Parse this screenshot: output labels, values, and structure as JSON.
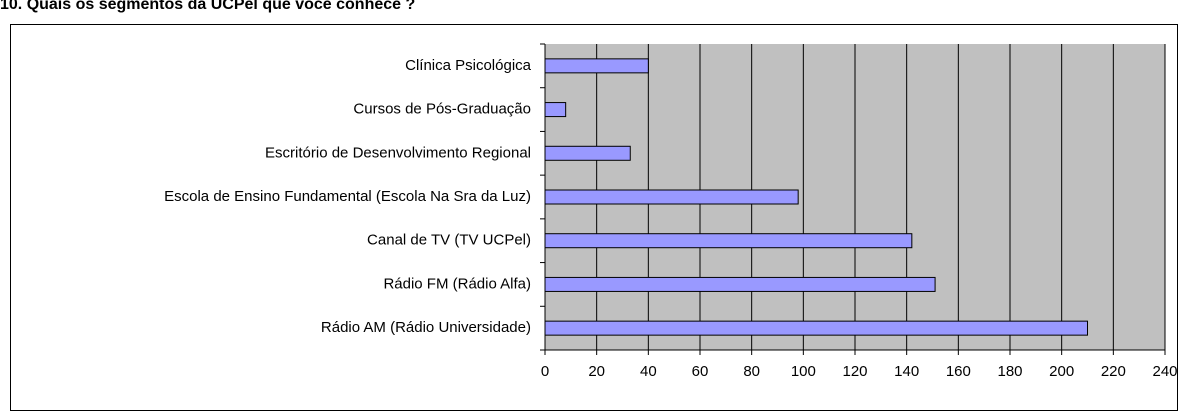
{
  "chart_data": {
    "type": "bar",
    "orientation": "horizontal",
    "title": "10. Quais os segmentos da UCPel que você conhece ?",
    "categories": [
      "Clínica Psicológica",
      "Cursos de Pós-Graduação",
      "Escritório de Desenvolvimento Regional",
      "Escola de Ensino Fundamental (Escola Na Sra da Luz)",
      "Canal de TV (TV UCPel)",
      "Rádio FM (Rádio Alfa)",
      "Rádio AM (Rádio Universidade)"
    ],
    "values": [
      40,
      8,
      33,
      98,
      142,
      151,
      210
    ],
    "color": "#9999ff",
    "xlim": [
      0,
      240
    ],
    "xticks": [
      0,
      20,
      40,
      60,
      80,
      100,
      120,
      140,
      160,
      180,
      200,
      220,
      240
    ],
    "grid": true
  }
}
